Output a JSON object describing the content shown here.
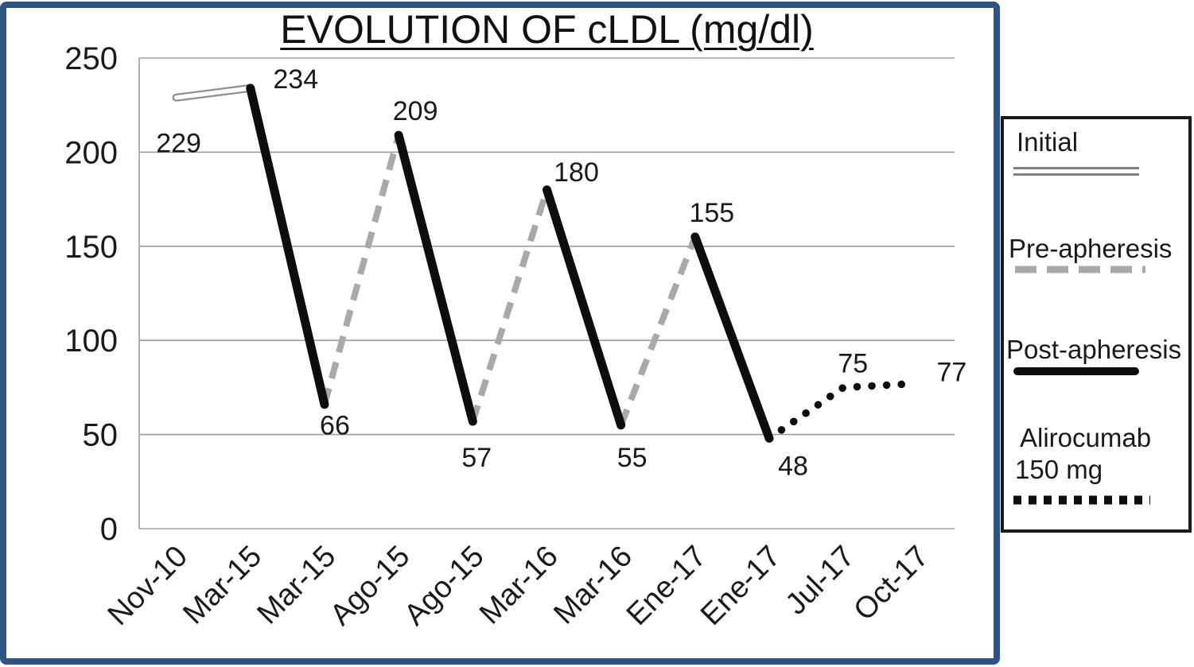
{
  "figure": {
    "frame_color": "#2e5385"
  },
  "chart_data": {
    "type": "line",
    "title": "EVOLUTION OF cLDL (mg/dl)",
    "xlabel": "",
    "ylabel": "",
    "ylim": [
      0,
      250
    ],
    "y_ticks": [
      0,
      50,
      100,
      150,
      200,
      250
    ],
    "grid": true,
    "legend_position": "right-outside",
    "categories": [
      "Nov-10",
      "Mar-15",
      "Mar-15",
      "Ago-15",
      "Ago-15",
      "Mar-16",
      "Mar-16",
      "Ene-17",
      "Ene-17",
      "Jul-17",
      "Oct-17"
    ],
    "point_values": [
      229,
      234,
      66,
      209,
      57,
      180,
      55,
      155,
      48,
      75,
      77
    ],
    "series": [
      {
        "name": "Initial",
        "style": "double-outline-gray",
        "points": [
          [
            0,
            229
          ],
          [
            1,
            234
          ]
        ]
      },
      {
        "name": "Pre-apheresis",
        "style": "dashed-gray",
        "segments": [
          [
            [
              2,
              66
            ],
            [
              3,
              209
            ]
          ],
          [
            [
              4,
              57
            ],
            [
              5,
              180
            ]
          ],
          [
            [
              6,
              55
            ],
            [
              7,
              155
            ]
          ]
        ]
      },
      {
        "name": "Post-apheresis",
        "style": "solid-black",
        "segments": [
          [
            [
              1,
              234
            ],
            [
              2,
              66
            ]
          ],
          [
            [
              3,
              209
            ],
            [
              4,
              57
            ]
          ],
          [
            [
              5,
              180
            ],
            [
              6,
              55
            ]
          ],
          [
            [
              7,
              155
            ],
            [
              8,
              48
            ]
          ]
        ]
      },
      {
        "name": "Alirocumab 150 mg",
        "style": "dotted-black",
        "points": [
          [
            8,
            48
          ],
          [
            9,
            75
          ],
          [
            10,
            77
          ]
        ]
      }
    ],
    "data_labels": [
      {
        "point": 0,
        "text": "229"
      },
      {
        "point": 1,
        "text": "234"
      },
      {
        "point": 2,
        "text": "66"
      },
      {
        "point": 3,
        "text": "209"
      },
      {
        "point": 4,
        "text": "57"
      },
      {
        "point": 5,
        "text": "180"
      },
      {
        "point": 6,
        "text": "55"
      },
      {
        "point": 7,
        "text": "155"
      },
      {
        "point": 8,
        "text": "48"
      },
      {
        "point": 9,
        "text": "75"
      },
      {
        "point": 10,
        "text": "77"
      }
    ],
    "colors": {
      "grid": "#9d9d9d",
      "dashed": "#a9a9a9",
      "solid": "#0d0d0d",
      "double_outline": "#8f8f8f",
      "text": "#1a1a1a"
    },
    "legend": {
      "items": [
        {
          "label": "Initial",
          "lines": [
            "Initial"
          ],
          "style": "double-outline-gray"
        },
        {
          "label": "Pre-apheresis",
          "lines": [
            "Pre-apheresis"
          ],
          "style": "dashed-gray"
        },
        {
          "label": "Post-apheresis",
          "lines": [
            "Post-apheresis"
          ],
          "style": "solid-black"
        },
        {
          "label": "Alirocumab 150 mg",
          "lines": [
            "Alirocumab",
            "150 mg"
          ],
          "style": "dotted-black"
        }
      ]
    }
  }
}
